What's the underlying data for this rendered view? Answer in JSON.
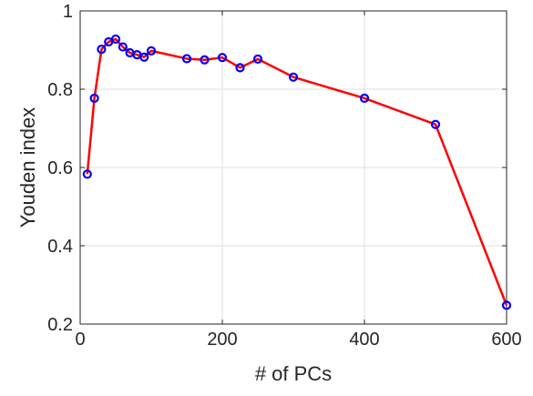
{
  "chart_data": {
    "type": "line",
    "xlabel": "# of PCs",
    "ylabel": "Youden index",
    "xlim": [
      0,
      600
    ],
    "ylim": [
      0.2,
      1.0
    ],
    "xticks": [
      0,
      200,
      400,
      600
    ],
    "yticks": [
      0.2,
      0.4,
      0.6,
      0.8,
      1.0
    ],
    "xtick_labels": [
      "0",
      "200",
      "400",
      "600"
    ],
    "ytick_labels": [
      "0.2",
      "0.4",
      "0.6",
      "0.8",
      "1"
    ],
    "grid": true,
    "line_color": "#ff0000",
    "marker_color": "#0000ff",
    "marker": "circle",
    "series": [
      {
        "x": [
          10,
          20,
          30,
          40,
          50,
          60,
          70,
          80,
          90,
          100,
          150,
          175,
          200,
          225,
          250,
          300,
          400,
          500,
          600
        ],
        "y": [
          0.583,
          0.777,
          0.902,
          0.921,
          0.928,
          0.908,
          0.893,
          0.888,
          0.882,
          0.898,
          0.878,
          0.875,
          0.881,
          0.855,
          0.877,
          0.831,
          0.777,
          0.71,
          0.248
        ]
      }
    ]
  }
}
